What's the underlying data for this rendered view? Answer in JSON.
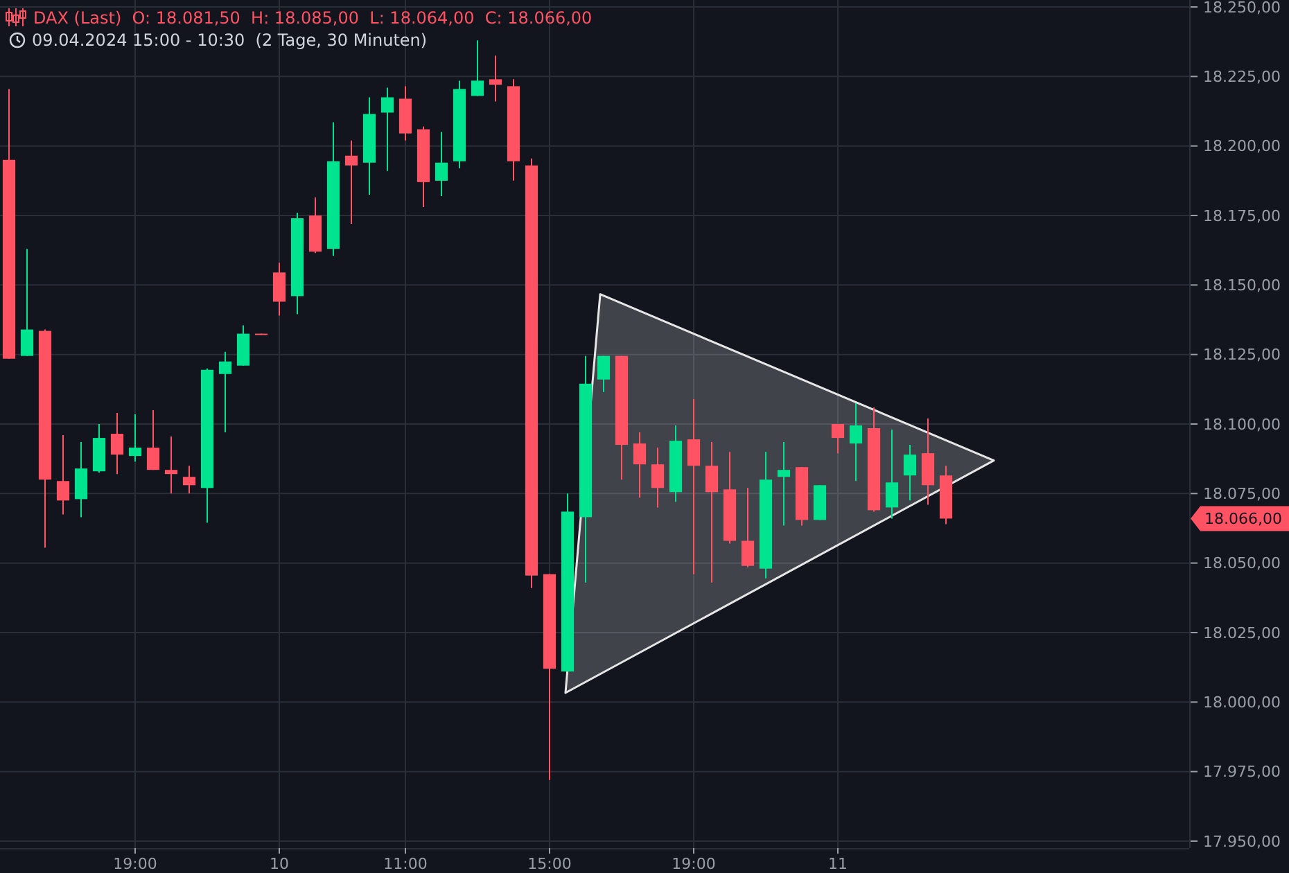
{
  "chart_data": {
    "type": "candlestick",
    "title": "DAX (Last)  O: 18.081,50  H: 18.085,00  L: 18.064,00  C: 18.066,00",
    "subtitle": "09.04.2024 15:00 - 10:30  (2 Tage, 30 Minuten)",
    "categories": [
      null,
      null,
      null,
      null,
      null,
      null,
      null,
      "19:00",
      null,
      null,
      null,
      null,
      null,
      null,
      null,
      "10",
      null,
      null,
      null,
      null,
      null,
      null,
      "11:00",
      null,
      null,
      null,
      null,
      null,
      null,
      null,
      "15:00",
      null,
      null,
      null,
      null,
      null,
      null,
      null,
      "19:00",
      null,
      null,
      null,
      null,
      null,
      null,
      null,
      "11",
      null,
      null,
      null,
      null,
      null,
      null,
      null,
      null,
      null,
      null,
      null,
      null,
      null,
      null,
      null,
      null,
      null,
      null,
      null
    ],
    "ohlc": [
      [
        18195,
        18220.5,
        18123.5,
        18123.5
      ],
      [
        18124.5,
        18163,
        18124.5,
        18134
      ],
      [
        18133.5,
        18134,
        18055.5,
        18080
      ],
      [
        18079.5,
        18096,
        18067.5,
        18072.5
      ],
      [
        18073,
        18093.5,
        18066.5,
        18084
      ],
      [
        18083,
        18100,
        18082.5,
        18095
      ],
      [
        18096.5,
        18104,
        18082,
        18089
      ],
      [
        18088.5,
        18103.5,
        18086.5,
        18091.5
      ],
      [
        18091.5,
        18105,
        18083.5,
        18083.5
      ],
      [
        18083.5,
        18095.5,
        18075,
        18082
      ],
      [
        18081,
        18085,
        18075,
        18078
      ],
      [
        18077,
        18120,
        18064.5,
        18119.5
      ],
      [
        18118,
        18126,
        18097,
        18122.5
      ],
      [
        18121,
        18135.5,
        18121,
        18132.5
      ],
      [
        18132.5,
        18132.5,
        18132,
        18132
      ],
      [
        18154.5,
        18158,
        18139,
        18144
      ],
      [
        18146,
        18176,
        18139.5,
        18174
      ],
      [
        18175,
        18181.5,
        18161.5,
        18162
      ],
      [
        18163,
        18208.5,
        18160.5,
        18194.5
      ],
      [
        18196.5,
        18202,
        18172,
        18193
      ],
      [
        18194,
        18217.5,
        18182.5,
        18211.5
      ],
      [
        18212,
        18221,
        18191,
        18217.5
      ],
      [
        18217,
        18221.5,
        18202,
        18204.5
      ],
      [
        18206,
        18207,
        18178,
        18187
      ],
      [
        18187.5,
        18205,
        18182,
        18194
      ],
      [
        18194.5,
        18223.5,
        18192,
        18220.5
      ],
      [
        18218,
        18238,
        18218,
        18223.5
      ],
      [
        18224,
        18232.5,
        18216,
        18222
      ],
      [
        18221.5,
        18224,
        18187.5,
        18194.5
      ],
      [
        18193,
        18195.5,
        18041,
        18045.5
      ],
      [
        18046,
        18046,
        17972,
        18012
      ],
      [
        18011,
        18075,
        18011,
        18068.5
      ],
      [
        18066.5,
        18124.5,
        18043,
        18114.5
      ],
      [
        18116,
        18124.5,
        18111.5,
        18124.5
      ],
      [
        18124.5,
        18124.5,
        18080,
        18092.5
      ],
      [
        18093,
        18097,
        18073.5,
        18085.5
      ],
      [
        18085.5,
        18091.5,
        18070,
        18077
      ],
      [
        18075.5,
        18099.5,
        18072,
        18094
      ],
      [
        18094.5,
        18109,
        18046,
        18085
      ],
      [
        18085,
        18093.5,
        18043,
        18075.5
      ],
      [
        18076.5,
        18090,
        18057,
        18058
      ],
      [
        18058,
        18077,
        18048.5,
        18049
      ],
      [
        18048,
        18090,
        18044.5,
        18080
      ],
      [
        18081,
        18093.5,
        18063.5,
        18083.5
      ],
      [
        18084.5,
        18084.5,
        18063.5,
        18065.5
      ],
      [
        18065.5,
        18078,
        18065.5,
        18078
      ],
      [
        18100,
        18100,
        18089.5,
        18095
      ],
      [
        18093,
        18107.5,
        18079.5,
        18099.5
      ],
      [
        18098.5,
        18106,
        18068.5,
        18069
      ],
      [
        18070,
        18098,
        18066,
        18079
      ],
      [
        18081.5,
        18092.5,
        18072.5,
        18089
      ],
      [
        18089.5,
        18102,
        18071,
        18078
      ],
      [
        18081.5,
        18085,
        18064,
        18066
      ],
      null,
      null,
      null,
      null,
      null,
      null,
      null,
      null,
      null,
      null,
      null,
      null,
      null
    ],
    "colors": [
      "#ff5263",
      "#00e490",
      "#ff5263",
      "#ff5263",
      "#00e490",
      "#00e490",
      "#ff5263",
      "#00e490",
      "#ff5263",
      "#ff5263",
      "#ff5263",
      "#00e490",
      "#00e490",
      "#00e490",
      "#ff5263",
      "#ff5263",
      "#00e490",
      "#ff5263",
      "#00e490",
      "#ff5263",
      "#00e490",
      "#00e490",
      "#ff5263",
      "#ff5263",
      "#00e490",
      "#00e490",
      "#00e490",
      "#ff5263",
      "#ff5263",
      "#ff5263",
      "#ff5263",
      "#00e490",
      "#00e490",
      "#00e490",
      "#ff5263",
      "#ff5263",
      "#ff5263",
      "#00e490",
      "#ff5263",
      "#ff5263",
      "#ff5263",
      "#ff5263",
      "#00e490",
      "#00e490",
      "#ff5263",
      "#00e490",
      "#ff5263",
      "#00e490",
      "#ff5263",
      "#00e490",
      "#00e490",
      "#ff5263",
      "#ff5263",
      null,
      null,
      null,
      null,
      null,
      null,
      null,
      null,
      null,
      null,
      null,
      null,
      null
    ],
    "ylim": [
      17947.5,
      18252.5
    ],
    "yticks": [
      {
        "value": 17950,
        "label": "17.950,00"
      },
      {
        "value": 17975,
        "label": "17.975,00"
      },
      {
        "value": 18000,
        "label": "18.000,00"
      },
      {
        "value": 18025,
        "label": "18.025,00"
      },
      {
        "value": 18050,
        "label": "18.050,00"
      },
      {
        "value": 18075,
        "label": "18.075,00"
      },
      {
        "value": 18100,
        "label": "18.100,00"
      },
      {
        "value": 18125,
        "label": "18.125,00"
      },
      {
        "value": 18150,
        "label": "18.150,00"
      },
      {
        "value": 18175,
        "label": "18.175,00"
      },
      {
        "value": 18200,
        "label": "18.200,00"
      },
      {
        "value": 18225,
        "label": "18.225,00"
      },
      {
        "value": 18250,
        "label": "18.250,00"
      }
    ],
    "grid": true,
    "annotations": [
      "18.066,00"
    ]
  }
}
